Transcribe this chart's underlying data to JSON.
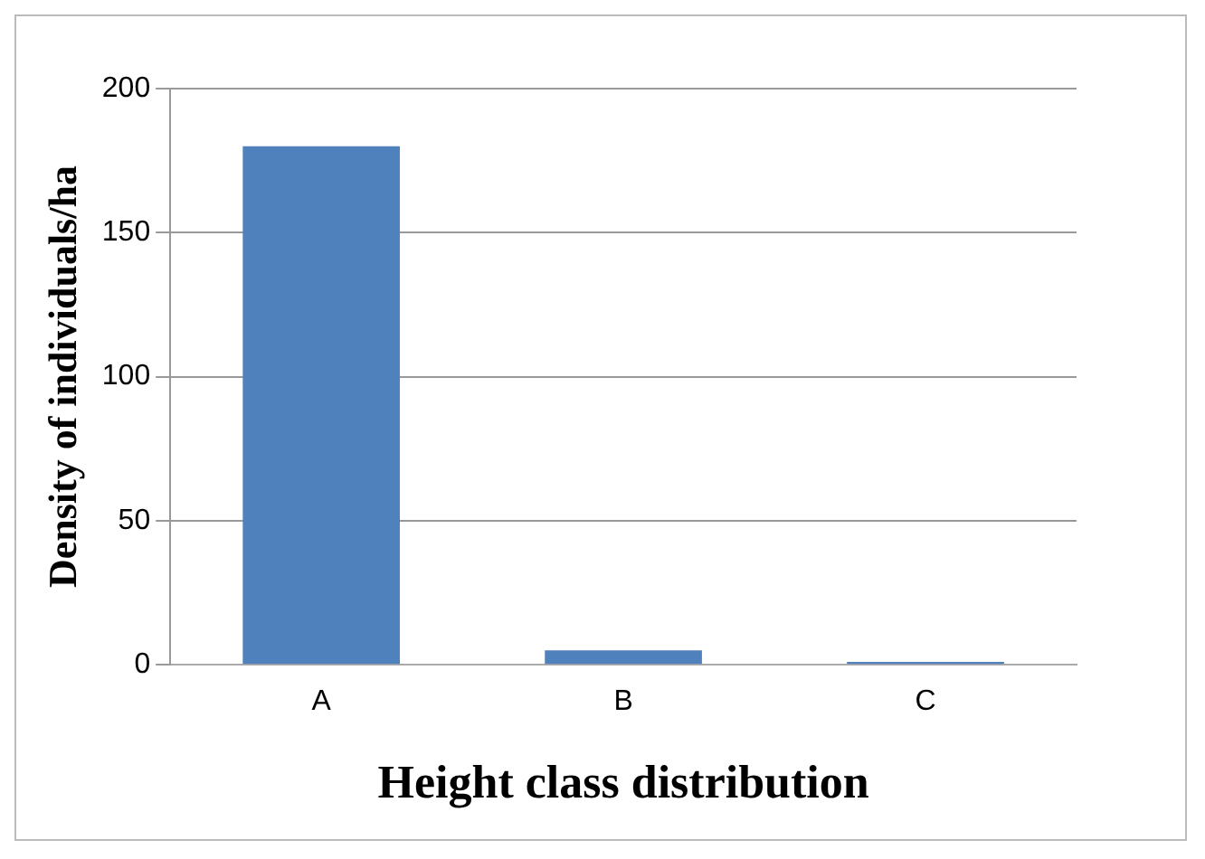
{
  "chart_data": {
    "type": "bar",
    "xlabel": "Height class distribution",
    "ylabel": "Density of individuals/ha",
    "categories": [
      "A",
      "B",
      "C"
    ],
    "series": [
      {
        "color": "#4f81bd",
        "values": [
          180,
          5,
          1
        ]
      }
    ],
    "ylim": [
      0,
      200
    ],
    "yticks": [
      0,
      50,
      100,
      150,
      200
    ],
    "grid": "y",
    "legend": false
  }
}
